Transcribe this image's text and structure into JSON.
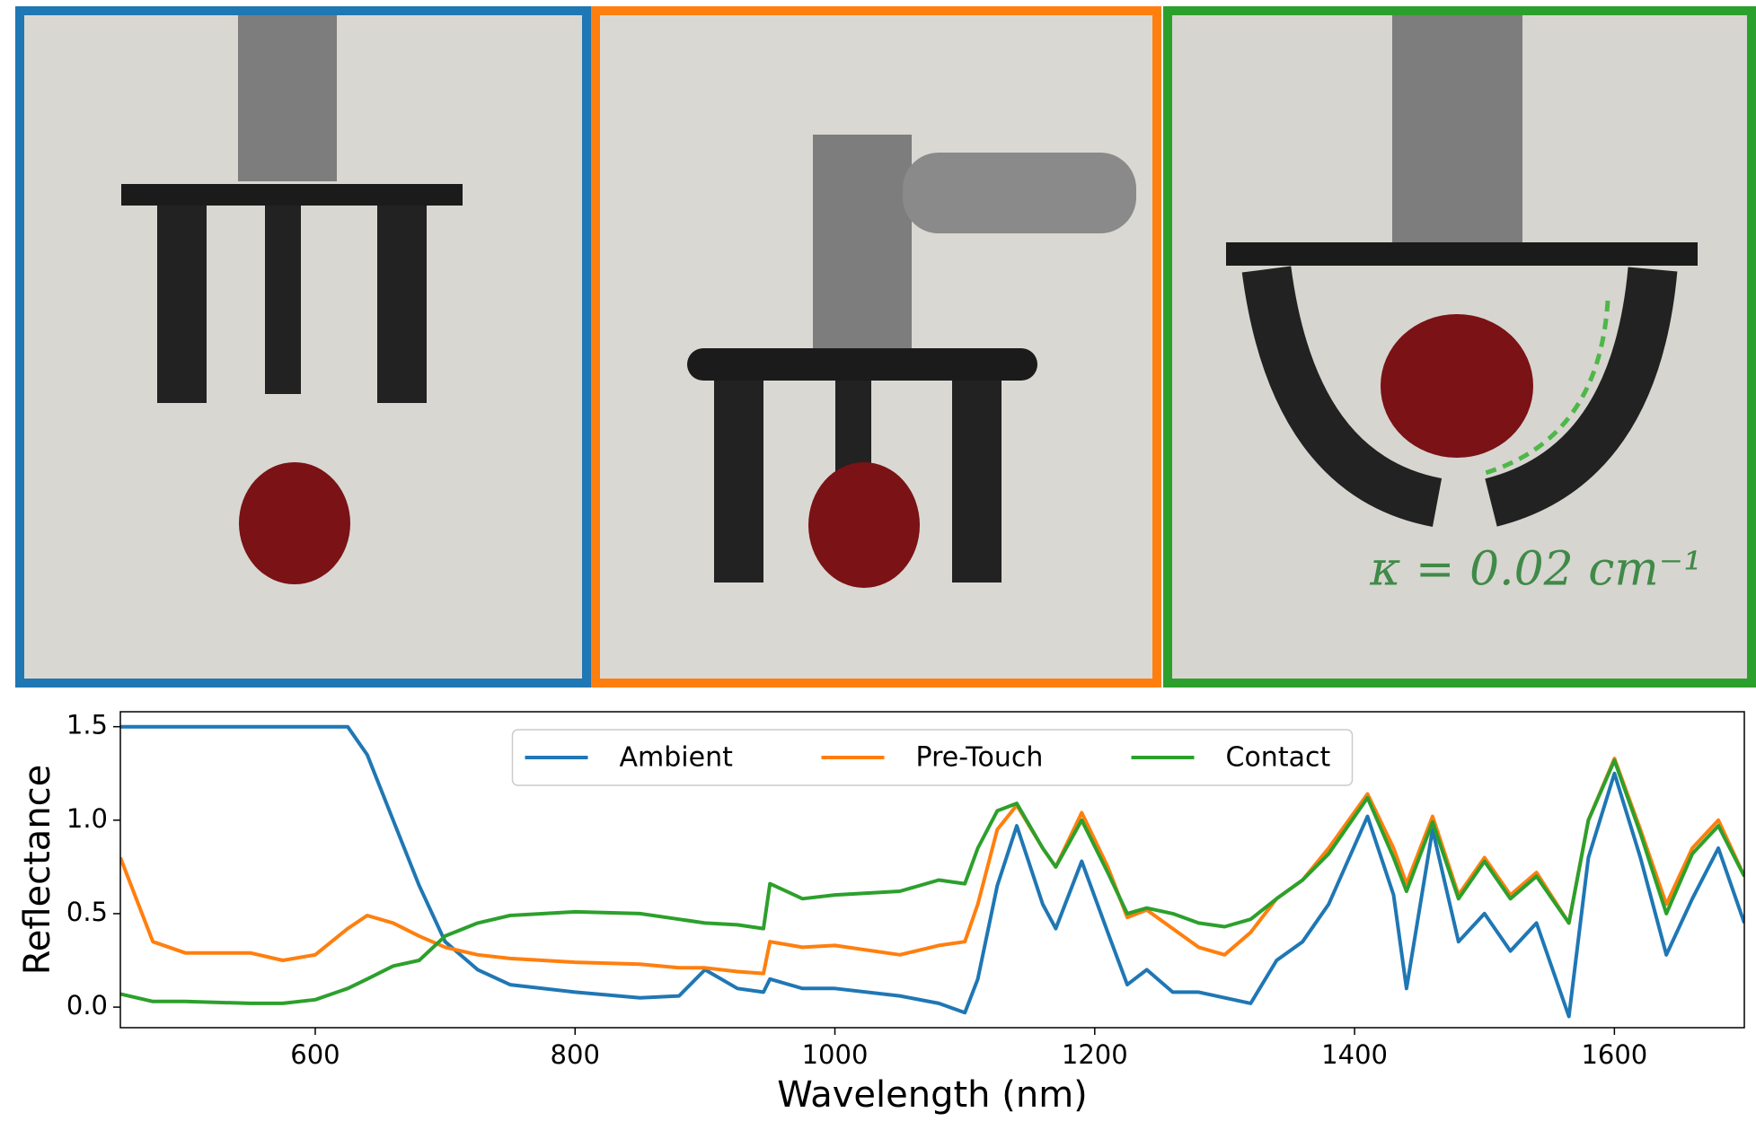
{
  "chart_data": {
    "type": "line",
    "annotation": "κ = 0.02 cm⁻¹",
    "xlabel": "Wavelength (nm)",
    "ylabel": "Reflectance",
    "x": [
      450,
      475,
      500,
      550,
      575,
      600,
      625,
      640,
      660,
      680,
      700,
      725,
      750,
      800,
      850,
      880,
      900,
      925,
      945,
      950,
      975,
      1000,
      1050,
      1080,
      1100,
      1110,
      1125,
      1140,
      1160,
      1170,
      1190,
      1210,
      1225,
      1240,
      1260,
      1280,
      1300,
      1320,
      1340,
      1360,
      1380,
      1410,
      1430,
      1440,
      1460,
      1480,
      1500,
      1520,
      1540,
      1565,
      1580,
      1600,
      1620,
      1640,
      1660,
      1680,
      1700
    ],
    "series": [
      {
        "name": "Ambient",
        "color": "#1f77b4",
        "values": [
          1.5,
          1.5,
          1.5,
          1.5,
          1.5,
          1.5,
          1.5,
          1.35,
          1.0,
          0.65,
          0.35,
          0.2,
          0.12,
          0.08,
          0.05,
          0.06,
          0.2,
          0.1,
          0.08,
          0.15,
          0.1,
          0.1,
          0.06,
          0.02,
          -0.03,
          0.15,
          0.65,
          0.97,
          0.55,
          0.42,
          0.78,
          0.4,
          0.12,
          0.2,
          0.08,
          0.08,
          0.05,
          0.02,
          0.25,
          0.35,
          0.55,
          1.02,
          0.6,
          0.1,
          0.95,
          0.35,
          0.5,
          0.3,
          0.45,
          -0.05,
          0.8,
          1.25,
          0.8,
          0.28,
          0.58,
          0.85,
          0.45
        ]
      },
      {
        "name": "Pre-Touch",
        "color": "#ff7f0e",
        "values": [
          0.8,
          0.35,
          0.29,
          0.29,
          0.25,
          0.28,
          0.42,
          0.49,
          0.45,
          0.38,
          0.32,
          0.28,
          0.26,
          0.24,
          0.23,
          0.21,
          0.21,
          0.19,
          0.18,
          0.35,
          0.32,
          0.33,
          0.28,
          0.33,
          0.35,
          0.55,
          0.95,
          1.08,
          0.85,
          0.75,
          1.04,
          0.75,
          0.48,
          0.52,
          0.42,
          0.32,
          0.28,
          0.4,
          0.58,
          0.68,
          0.85,
          1.14,
          0.85,
          0.66,
          1.02,
          0.6,
          0.8,
          0.6,
          0.72,
          0.45,
          1.0,
          1.33,
          0.95,
          0.55,
          0.85,
          1.0,
          0.7
        ]
      },
      {
        "name": "Contact",
        "color": "#2ca02c",
        "values": [
          0.07,
          0.03,
          0.03,
          0.02,
          0.02,
          0.04,
          0.1,
          0.15,
          0.22,
          0.25,
          0.38,
          0.45,
          0.49,
          0.51,
          0.5,
          0.47,
          0.45,
          0.44,
          0.42,
          0.66,
          0.58,
          0.6,
          0.62,
          0.68,
          0.66,
          0.85,
          1.05,
          1.09,
          0.85,
          0.75,
          1.0,
          0.72,
          0.5,
          0.53,
          0.5,
          0.45,
          0.43,
          0.47,
          0.58,
          0.68,
          0.82,
          1.12,
          0.8,
          0.62,
          0.99,
          0.58,
          0.78,
          0.58,
          0.7,
          0.45,
          1.0,
          1.32,
          0.93,
          0.5,
          0.82,
          0.97,
          0.7
        ]
      }
    ],
    "xlim": [
      450,
      1700
    ],
    "xticks": [
      600,
      800,
      1000,
      1200,
      1400,
      1600
    ],
    "ylim": [
      -0.11,
      1.58
    ],
    "yticks": [
      {
        "value": 0,
        "label": "0.0"
      },
      0.5,
      {
        "value": 1,
        "label": "1.0"
      },
      1.5
    ],
    "legend": "upper center"
  }
}
